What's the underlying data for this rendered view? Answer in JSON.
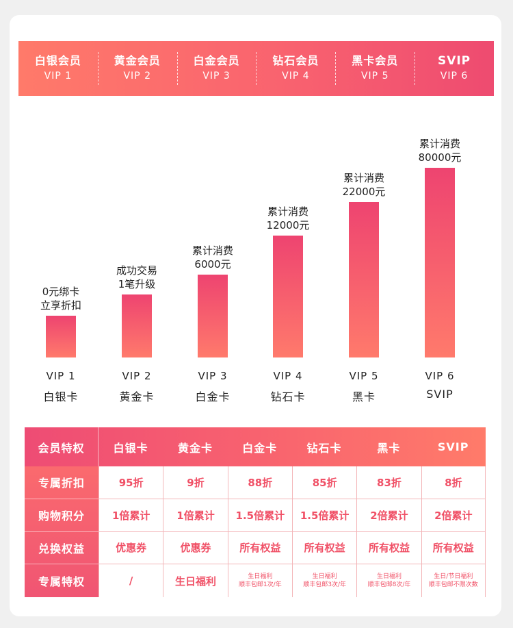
{
  "levels": [
    {
      "name": "白银会员",
      "code": "VIP 1"
    },
    {
      "name": "黄金会员",
      "code": "VIP 2"
    },
    {
      "name": "白金会员",
      "code": "VIP 3"
    },
    {
      "name": "钻石会员",
      "code": "VIP 4"
    },
    {
      "name": "黑卡会员",
      "code": "VIP 5"
    },
    {
      "name": "SVIP",
      "code": "VIP 6"
    }
  ],
  "tiers": [
    {
      "line1": "0元绑卡",
      "line2": "立享折扣",
      "code": "VIP 1",
      "card": "白银卡"
    },
    {
      "line1": "成功交易",
      "line2": "1笔升级",
      "code": "VIP 2",
      "card": "黄金卡"
    },
    {
      "line1": "累计消费",
      "line2": "6000元",
      "code": "VIP 3",
      "card": "白金卡"
    },
    {
      "line1": "累计消费",
      "line2": "12000元",
      "code": "VIP 4",
      "card": "钻石卡"
    },
    {
      "line1": "累计消费",
      "line2": "22000元",
      "code": "VIP 5",
      "card": "黑卡"
    },
    {
      "line1": "累计消费",
      "line2": "80000元",
      "code": "VIP 6",
      "card": "SVIP"
    }
  ],
  "bar_levels": [
    1,
    2,
    3,
    4,
    5,
    6
  ],
  "table": {
    "corner": "会员特权",
    "columns": [
      "白银卡",
      "黄金卡",
      "白金卡",
      "钻石卡",
      "黑卡",
      "SVIP"
    ],
    "rows": [
      {
        "label": "专属折扣",
        "cells": [
          "95折",
          "9折",
          "88折",
          "85折",
          "83折",
          "8折"
        ]
      },
      {
        "label": "购物积分",
        "cells": [
          "1倍累计",
          "1倍累计",
          "1.5倍累计",
          "1.5倍累计",
          "2倍累计",
          "2倍累计"
        ]
      },
      {
        "label": "兑换权益",
        "cells": [
          "优惠券",
          "优惠券",
          "所有权益",
          "所有权益",
          "所有权益",
          "所有权益"
        ]
      },
      {
        "label": "专属特权",
        "cells": [
          "/",
          "生日福利",
          "生日福利\n顺丰包邮1次/年",
          "生日福利\n顺丰包邮3次/年",
          "生日福利\n顺丰包邮8次/年",
          "生日/节日福利\n顺丰包邮不限次数"
        ]
      }
    ]
  },
  "colors": {
    "accent_start": "#ff7a6a",
    "accent_end": "#ee4b70",
    "cell_text": "#f05066",
    "grid_line": "#f3b5b8"
  }
}
